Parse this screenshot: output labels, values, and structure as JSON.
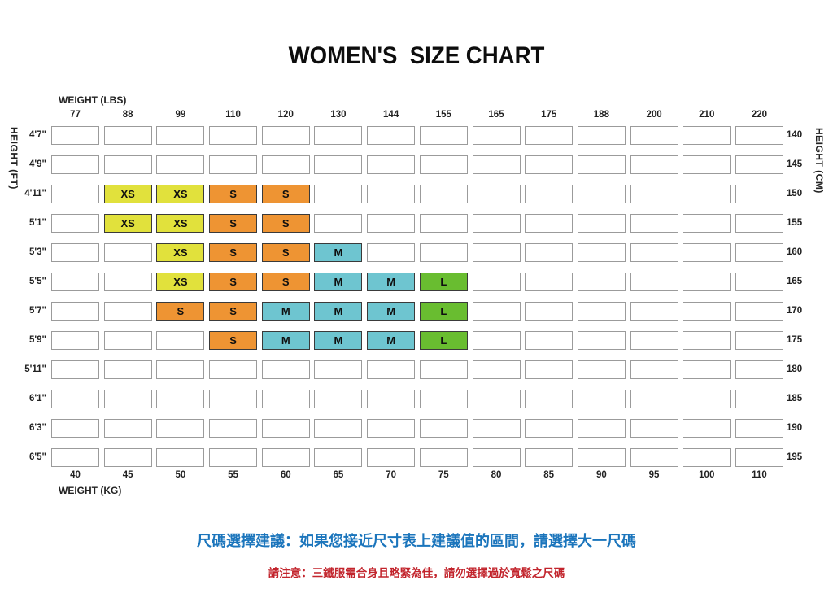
{
  "title": "WOMEN'S  SIZE CHART",
  "axes": {
    "top_label": "WEIGHT (LBS)",
    "bottom_label": "WEIGHT (KG)",
    "left_label": "HEIGHT (FT)",
    "right_label": "HEIGHT (CM)"
  },
  "size_colors": {
    "XS": "#e1e13c",
    "S": "#ee9433",
    "M": "#6ec5d0",
    "L": "#69bd30"
  },
  "note_colors": {
    "advice": "#1b75bc",
    "warning": "#c2242c"
  },
  "notes": {
    "advice": "尺碼選擇建議：如果您接近尺寸表上建議值的區間，請選擇大一尺碼",
    "warning": "請注意：三鐵服需合身且略緊為佳，請勿選擇過於寬鬆之尺碼"
  },
  "chart_data": {
    "type": "table",
    "title": "WOMEN'S SIZE CHART",
    "weight_lbs": [
      "77",
      "88",
      "99",
      "110",
      "120",
      "130",
      "144",
      "155",
      "165",
      "175",
      "188",
      "200",
      "210",
      "220"
    ],
    "weight_kg": [
      "40",
      "45",
      "50",
      "55",
      "60",
      "65",
      "70",
      "75",
      "80",
      "85",
      "90",
      "95",
      "100",
      "110"
    ],
    "height_ft": [
      "4'7\"",
      "4'9\"",
      "4'11\"",
      "5'1\"",
      "5'3\"",
      "5'5\"",
      "5'7\"",
      "5'9\"",
      "5'11\"",
      "6'1\"",
      "6'3\"",
      "6'5\""
    ],
    "height_cm": [
      "140",
      "145",
      "150",
      "155",
      "160",
      "165",
      "170",
      "175",
      "180",
      "185",
      "190",
      "195"
    ],
    "cells": [
      [
        "",
        "",
        "",
        "",
        "",
        "",
        "",
        "",
        "",
        "",
        "",
        "",
        "",
        ""
      ],
      [
        "",
        "",
        "",
        "",
        "",
        "",
        "",
        "",
        "",
        "",
        "",
        "",
        "",
        ""
      ],
      [
        "",
        "XS",
        "XS",
        "S",
        "S",
        "",
        "",
        "",
        "",
        "",
        "",
        "",
        "",
        ""
      ],
      [
        "",
        "XS",
        "XS",
        "S",
        "S",
        "",
        "",
        "",
        "",
        "",
        "",
        "",
        "",
        ""
      ],
      [
        "",
        "",
        "XS",
        "S",
        "S",
        "M",
        "",
        "",
        "",
        "",
        "",
        "",
        "",
        ""
      ],
      [
        "",
        "",
        "XS",
        "S",
        "S",
        "M",
        "M",
        "L",
        "",
        "",
        "",
        "",
        "",
        ""
      ],
      [
        "",
        "",
        "S",
        "S",
        "M",
        "M",
        "M",
        "L",
        "",
        "",
        "",
        "",
        "",
        ""
      ],
      [
        "",
        "",
        "",
        "S",
        "M",
        "M",
        "M",
        "L",
        "",
        "",
        "",
        "",
        "",
        ""
      ],
      [
        "",
        "",
        "",
        "",
        "",
        "",
        "",
        "",
        "",
        "",
        "",
        "",
        "",
        ""
      ],
      [
        "",
        "",
        "",
        "",
        "",
        "",
        "",
        "",
        "",
        "",
        "",
        "",
        "",
        ""
      ],
      [
        "",
        "",
        "",
        "",
        "",
        "",
        "",
        "",
        "",
        "",
        "",
        "",
        "",
        ""
      ],
      [
        "",
        "",
        "",
        "",
        "",
        "",
        "",
        "",
        "",
        "",
        "",
        "",
        "",
        ""
      ]
    ]
  }
}
